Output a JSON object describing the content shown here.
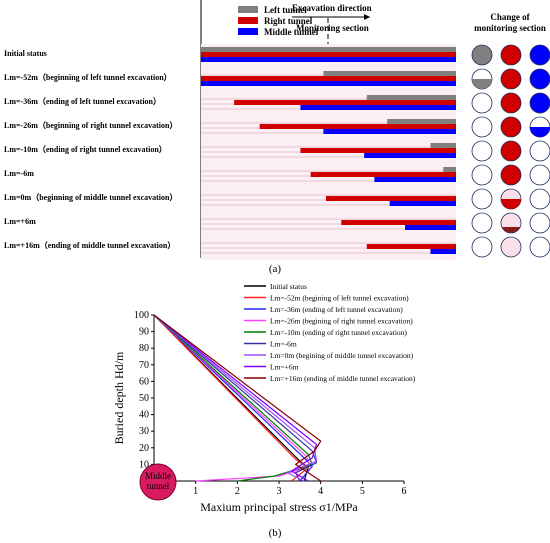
{
  "panel_a": {
    "legend": [
      {
        "label": "Left tunnel",
        "color": "#808080"
      },
      {
        "label": "Right tunnel",
        "color": "#d00000"
      },
      {
        "label": "Middle tunnel",
        "color": "#0000ff"
      }
    ],
    "excavation_direction": "Excavation direction",
    "monitoring_section": "Monitoring section",
    "change_title": "Change of monitoring section",
    "caption": "(a)",
    "rows": [
      {
        "label": "Initial status",
        "bars": [
          {
            "t": "L",
            "s": 0,
            "e": 1
          },
          {
            "t": "R",
            "s": 0,
            "e": 1
          },
          {
            "t": "M",
            "s": 0,
            "e": 1
          }
        ],
        "state": [
          "filled-L",
          "filled-R",
          "filled-M"
        ]
      },
      {
        "label": "Lm=-52m（beginning of left tunnel excavation）",
        "bars": [
          {
            "t": "L",
            "s": 0.48,
            "e": 1
          },
          {
            "t": "R",
            "s": 0,
            "e": 1
          },
          {
            "t": "M",
            "s": 0,
            "e": 1
          }
        ],
        "state": [
          "half-L",
          "filled-R",
          "filled-M"
        ]
      },
      {
        "label": "Lm=-36m（ending of left tunnel excavation）",
        "bars": [
          {
            "t": "L",
            "s": 0.65,
            "e": 1
          },
          {
            "t": "R",
            "s": 0.13,
            "e": 1
          },
          {
            "t": "M",
            "s": 0.39,
            "e": 1
          }
        ],
        "state": [
          "empty",
          "filled-R",
          "filled-M"
        ]
      },
      {
        "label": "Lm=-26m（beginning of right tunnel excavation）",
        "bars": [
          {
            "t": "L",
            "s": 0.73,
            "e": 1
          },
          {
            "t": "R",
            "s": 0.23,
            "e": 1
          },
          {
            "t": "M",
            "s": 0.48,
            "e": 1
          }
        ],
        "state": [
          "empty",
          "filled-R",
          "half-M"
        ]
      },
      {
        "label": "Lm=-10m（ending of right tunnel excavation）",
        "bars": [
          {
            "t": "L",
            "s": 0.9,
            "e": 1
          },
          {
            "t": "R",
            "s": 0.39,
            "e": 1
          },
          {
            "t": "M",
            "s": 0.64,
            "e": 1
          }
        ],
        "state": [
          "empty",
          "filled-R",
          "empty"
        ]
      },
      {
        "label": "Lm=-6m",
        "bars": [
          {
            "t": "L",
            "s": 0.95,
            "e": 1
          },
          {
            "t": "R",
            "s": 0.43,
            "e": 1
          },
          {
            "t": "M",
            "s": 0.68,
            "e": 1
          }
        ],
        "state": [
          "empty",
          "filled-R",
          "empty"
        ]
      },
      {
        "label": "Lm=0m（beginning of middle tunnel excavation）",
        "bars": [
          {
            "t": "L",
            "s": 1,
            "e": 1
          },
          {
            "t": "R",
            "s": 0.49,
            "e": 1
          },
          {
            "t": "M",
            "s": 0.74,
            "e": 1
          }
        ],
        "state": [
          "empty",
          "half-R",
          "empty"
        ]
      },
      {
        "label": "Lm=+6m",
        "bars": [
          {
            "t": "L",
            "s": 1,
            "e": 1
          },
          {
            "t": "R",
            "s": 0.55,
            "e": 1
          },
          {
            "t": "M",
            "s": 0.8,
            "e": 1
          }
        ],
        "state": [
          "empty",
          "low-R",
          "empty"
        ]
      },
      {
        "label": "Lm=+16m（ending of middle tunnel excavation）",
        "bars": [
          {
            "t": "L",
            "s": 1,
            "e": 1
          },
          {
            "t": "R",
            "s": 0.65,
            "e": 1
          },
          {
            "t": "M",
            "s": 0.9,
            "e": 1
          }
        ],
        "state": [
          "empty",
          "empty",
          "empty"
        ]
      }
    ]
  },
  "chart_data": {
    "type": "line",
    "xlabel": "Maxium principal stress σ1/MPa",
    "ylabel": "Buried depth Hd/m",
    "xlim": [
      0,
      6
    ],
    "ylim": [
      0,
      100
    ],
    "x_ticks": [
      "0",
      "1",
      "2",
      "3",
      "4",
      "5",
      "6"
    ],
    "y_ticks": [
      "0",
      "10",
      "20",
      "30",
      "40",
      "50",
      "60",
      "70",
      "80",
      "90",
      "100"
    ],
    "tunnel_label": "Middle tunnel",
    "caption": "(b)",
    "legend_position": "top-right",
    "series": [
      {
        "name": "Initial status",
        "color": "#000000",
        "points": [
          [
            0,
            100
          ],
          [
            3.5,
            12
          ],
          [
            3.7,
            8
          ],
          [
            3.6,
            0
          ]
        ]
      },
      {
        "name": "Lm=-52m (begining of left tunnel excavation)",
        "color": "#ff2020",
        "points": [
          [
            0,
            100
          ],
          [
            3.4,
            13
          ],
          [
            3.7,
            8
          ],
          [
            3.3,
            0
          ]
        ]
      },
      {
        "name": "Lm=-36m (ending of left tunnel excavation)",
        "color": "#2020ff",
        "points": [
          [
            0,
            100
          ],
          [
            3.6,
            14
          ],
          [
            3.8,
            9
          ],
          [
            3.5,
            0
          ]
        ]
      },
      {
        "name": "Lm=-26m (begining of right tunnel excavation)",
        "color": "#ff40ff",
        "points": [
          [
            0,
            100
          ],
          [
            3.65,
            15
          ],
          [
            3.75,
            9
          ],
          [
            3.0,
            3
          ],
          [
            1.0,
            0
          ]
        ]
      },
      {
        "name": "Lm=-10m (ending of right tunnel excavation)",
        "color": "#008000",
        "points": [
          [
            0,
            100
          ],
          [
            3.7,
            16
          ],
          [
            3.8,
            10
          ],
          [
            2.9,
            3
          ],
          [
            2.0,
            0
          ]
        ]
      },
      {
        "name": "Lm=-6m",
        "color": "#3030a0",
        "points": [
          [
            0,
            100
          ],
          [
            3.8,
            18
          ],
          [
            3.9,
            11
          ],
          [
            3.4,
            5
          ],
          [
            3.5,
            0
          ]
        ]
      },
      {
        "name": "Lm=0m (begining of middle tunnel excavation)",
        "color": "#a050ff",
        "points": [
          [
            0,
            100
          ],
          [
            3.85,
            20
          ],
          [
            3.9,
            12
          ],
          [
            3.2,
            5
          ],
          [
            3.6,
            0
          ]
        ]
      },
      {
        "name": "Lm=+6m",
        "color": "#8000ff",
        "points": [
          [
            0,
            100
          ],
          [
            3.9,
            22
          ],
          [
            3.8,
            14
          ],
          [
            3.3,
            6
          ],
          [
            3.7,
            0
          ]
        ]
      },
      {
        "name": "Lm=+16m (ending of middle tunnel excavation)",
        "color": "#800000",
        "points": [
          [
            0,
            100
          ],
          [
            4.0,
            24
          ],
          [
            3.85,
            18
          ],
          [
            3.4,
            10
          ],
          [
            4.0,
            0
          ]
        ]
      }
    ]
  }
}
